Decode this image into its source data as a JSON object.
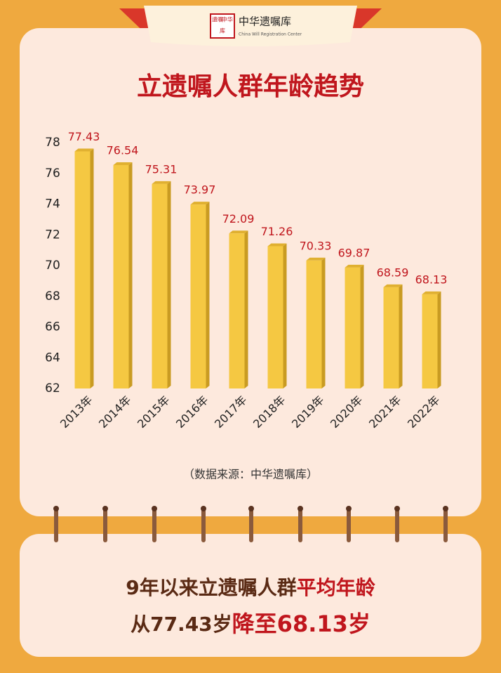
{
  "header": {
    "seal": [
      "遗嘱",
      "中华",
      "库"
    ],
    "logo_text": "中华遗嘱库",
    "logo_subtitle": "China Will Registration Center"
  },
  "chart_data": {
    "type": "bar",
    "title": "立遗嘱人群年龄趋势",
    "categories": [
      "2013年",
      "2014年",
      "2015年",
      "2016年",
      "2017年",
      "2018年",
      "2019年",
      "2020年",
      "2021年",
      "2022年"
    ],
    "values": [
      77.43,
      76.54,
      75.31,
      73.97,
      72.09,
      71.26,
      70.33,
      69.87,
      68.59,
      68.13
    ],
    "color": "#f5c842",
    "label_color": "#c0161d",
    "ylim": [
      62,
      78
    ],
    "yticks": [
      62,
      64,
      66,
      68,
      70,
      72,
      74,
      76,
      78
    ],
    "source": "（数据来源：中华遗嘱库）"
  },
  "summary": {
    "line1": [
      "9年以来立遗嘱人群",
      "平均年龄"
    ],
    "line2": [
      "从77.43岁",
      "降至68.13岁"
    ]
  }
}
